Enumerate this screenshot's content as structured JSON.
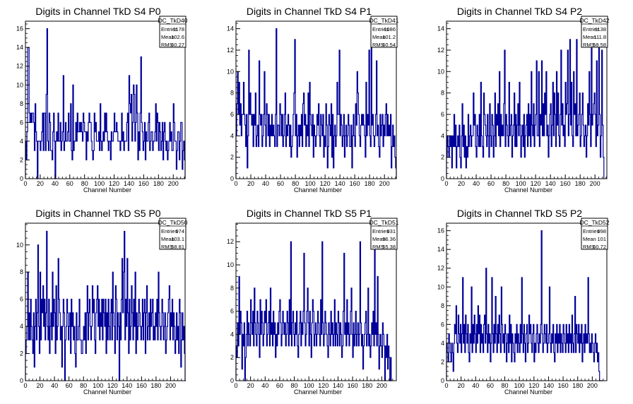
{
  "chart_data": [
    {
      "type": "histogram",
      "title": "Digits in Channel TkD S4 P0",
      "xlabel": "Channel Number",
      "xlim": [
        0,
        216
      ],
      "ylim": [
        0,
        16.8
      ],
      "xticks": [
        0,
        20,
        40,
        60,
        80,
        100,
        120,
        140,
        160,
        180,
        200
      ],
      "yticks": [
        0,
        2,
        4,
        6,
        8,
        10,
        12,
        14,
        16
      ],
      "stats": {
        "name": "DC_TkD40",
        "rows": [
          [
            "Entries",
            "1178"
          ],
          [
            "Mean",
            "102.6"
          ],
          [
            "RMS",
            "60.27"
          ]
        ]
      },
      "line_color": "#000099",
      "values": [
        4,
        2,
        5,
        14,
        14,
        7,
        6,
        7,
        6,
        7,
        7,
        6,
        3,
        8,
        5,
        4,
        0,
        4,
        4,
        4,
        3,
        4,
        5,
        7,
        3,
        7,
        7,
        3,
        9,
        16,
        4,
        3,
        7,
        6,
        3,
        3,
        2,
        5,
        7,
        4,
        0,
        4,
        5,
        4,
        7,
        4,
        4,
        6,
        3,
        4,
        5,
        11,
        3,
        4,
        6,
        4,
        4,
        5,
        7,
        4,
        4,
        8,
        3,
        2,
        10,
        3,
        4,
        4,
        6,
        4,
        7,
        5,
        5,
        6,
        5,
        6,
        5,
        4,
        7,
        6,
        5,
        5,
        2,
        5,
        4,
        6,
        7,
        6,
        6,
        4,
        3,
        2,
        3,
        7,
        5,
        6,
        4,
        4,
        4,
        5,
        3,
        8,
        4,
        3,
        4,
        5,
        4,
        7,
        5,
        7,
        5,
        4,
        3,
        4,
        4,
        2,
        5,
        4,
        4,
        5,
        7,
        5,
        5,
        6,
        5,
        4,
        4,
        4,
        3,
        4,
        7,
        4,
        5,
        3,
        4,
        4,
        4,
        6,
        7,
        3,
        11,
        8,
        7,
        9,
        4,
        6,
        10,
        9,
        4,
        6,
        10,
        7,
        2,
        5,
        3,
        7,
        13,
        6,
        5,
        3,
        4,
        6,
        2,
        5,
        4,
        4,
        6,
        7,
        3,
        4,
        5,
        5,
        3,
        4,
        4,
        5,
        8,
        4,
        7,
        6,
        3,
        6,
        5,
        3,
        4,
        6,
        2,
        5,
        6,
        4,
        3,
        4,
        2,
        3,
        4,
        6,
        4,
        5,
        3,
        3,
        8,
        6,
        4,
        4,
        1,
        3,
        5,
        5,
        2,
        4,
        6,
        6,
        1,
        3,
        4,
        2
      ]
    },
    {
      "type": "histogram",
      "title": "Digits in Channel TkD S4 P1",
      "xlabel": "Channel Number",
      "xlim": [
        0,
        216
      ],
      "ylim": [
        0,
        14.7
      ],
      "xticks": [
        0,
        20,
        40,
        60,
        80,
        100,
        120,
        140,
        160,
        180,
        200
      ],
      "yticks": [
        0,
        2,
        4,
        6,
        8,
        10,
        12,
        14
      ],
      "stats": {
        "name": "DC_TkD41",
        "rows": [
          [
            "Entries",
            "1086"
          ],
          [
            "Mean",
            "101.2"
          ],
          [
            "RMS",
            "60.54"
          ]
        ]
      },
      "line_color": "#000099",
      "values": [
        4,
        7,
        10,
        6,
        9,
        5,
        7,
        4,
        6,
        6,
        9,
        6,
        5,
        3,
        6,
        1,
        4,
        12,
        6,
        8,
        6,
        5,
        6,
        3,
        6,
        5,
        8,
        3,
        4,
        5,
        3,
        11,
        6,
        5,
        6,
        3,
        4,
        6,
        10,
        5,
        3,
        7,
        6,
        4,
        6,
        3,
        5,
        4,
        6,
        4,
        5,
        4,
        3,
        6,
        14,
        3,
        5,
        5,
        4,
        7,
        6,
        4,
        6,
        3,
        4,
        6,
        8,
        3,
        5,
        4,
        6,
        5,
        3,
        5,
        2,
        3,
        4,
        6,
        8,
        13,
        4,
        6,
        2,
        4,
        5,
        3,
        5,
        4,
        6,
        3,
        7,
        8,
        5,
        6,
        3,
        5,
        4,
        8,
        3,
        9,
        6,
        5,
        4,
        6,
        2,
        5,
        4,
        3,
        4,
        6,
        5,
        7,
        4,
        3,
        6,
        5,
        4,
        6,
        2,
        4,
        3,
        7,
        5,
        1,
        3,
        6,
        5,
        4,
        7,
        2,
        6,
        1,
        4,
        5,
        3,
        4,
        9,
        6,
        6,
        12,
        4,
        6,
        5,
        3,
        4,
        6,
        2,
        4,
        5,
        3,
        4,
        6,
        5,
        3,
        3,
        5,
        1,
        4,
        6,
        4,
        3,
        7,
        5,
        10,
        8,
        6,
        4,
        3,
        5,
        6,
        5,
        6,
        5,
        4,
        2,
        9,
        4,
        6,
        5,
        12,
        4,
        3,
        13,
        5,
        6,
        4,
        3,
        4,
        6,
        11,
        4,
        5,
        3,
        2,
        6,
        4,
        5,
        6,
        3,
        5,
        4,
        6,
        7,
        4,
        6,
        4,
        5,
        4,
        6,
        1,
        3,
        5,
        3,
        4,
        2,
        1
      ]
    },
    {
      "type": "histogram",
      "title": "Digits in Channel TkD S4 P2",
      "xlabel": "Channel Number",
      "xlim": [
        0,
        216
      ],
      "ylim": [
        0,
        14.7
      ],
      "xticks": [
        0,
        20,
        40,
        60,
        80,
        100,
        120,
        140,
        160,
        180,
        200
      ],
      "yticks": [
        0,
        2,
        4,
        6,
        8,
        10,
        12,
        14
      ],
      "stats": {
        "name": "DC_TkD42",
        "rows": [
          [
            "Entries",
            "1138"
          ],
          [
            "Mean",
            "111.8"
          ],
          [
            "RMS",
            "58.58"
          ]
        ]
      },
      "line_color": "#000099",
      "values": [
        2,
        4,
        3,
        2,
        4,
        3,
        4,
        1,
        4,
        3,
        6,
        3,
        5,
        1,
        3,
        4,
        3,
        5,
        2,
        1,
        4,
        7,
        3,
        5,
        2,
        4,
        1,
        3,
        2,
        6,
        3,
        4,
        5,
        3,
        4,
        4,
        8,
        5,
        6,
        3,
        2,
        5,
        4,
        3,
        6,
        3,
        9,
        4,
        3,
        2,
        8,
        6,
        5,
        4,
        3,
        6,
        4,
        2,
        7,
        4,
        3,
        6,
        5,
        2,
        4,
        8,
        3,
        6,
        5,
        7,
        4,
        10,
        3,
        6,
        4,
        5,
        4,
        7,
        12,
        3,
        6,
        5,
        4,
        3,
        9,
        4,
        5,
        6,
        2,
        4,
        5,
        8,
        3,
        6,
        3,
        5,
        7,
        4,
        9,
        5,
        2,
        4,
        5,
        3,
        6,
        2,
        4,
        5,
        6,
        3,
        7,
        4,
        6,
        3,
        10,
        5,
        4,
        7,
        3,
        5,
        6,
        11,
        4,
        4,
        10,
        3,
        6,
        5,
        11,
        4,
        7,
        4,
        8,
        6,
        10,
        4,
        5,
        2,
        4,
        6,
        7,
        3,
        5,
        9,
        4,
        8,
        6,
        3,
        10,
        5,
        8,
        4,
        3,
        6,
        12,
        5,
        7,
        4,
        5,
        3,
        9,
        6,
        7,
        12,
        4,
        6,
        13,
        5,
        9,
        4,
        3,
        10,
        6,
        7,
        4,
        13,
        4,
        5,
        6,
        8,
        3,
        4,
        6,
        8,
        5,
        3,
        4,
        5,
        2,
        4,
        7,
        5,
        10,
        6,
        3,
        13,
        5,
        6,
        7,
        8,
        6,
        3,
        11,
        4,
        5,
        14,
        6,
        2,
        4,
        12,
        5,
        2
      ]
    },
    {
      "type": "histogram",
      "title": "Digits in Channel TkD S5 P0",
      "xlabel": "Channel Number",
      "xlim": [
        0,
        220
      ],
      "ylim": [
        0,
        11.6
      ],
      "xticks": [
        0,
        20,
        40,
        60,
        80,
        100,
        120,
        140,
        160,
        180,
        200
      ],
      "yticks": [
        0,
        2,
        4,
        6,
        8,
        10
      ],
      "stats": {
        "name": "DC_TkD50",
        "rows": [
          [
            "Entries",
            "974"
          ],
          [
            "Mean",
            "103.1"
          ],
          [
            "RMS",
            "58.81"
          ]
        ]
      },
      "line_color": "#000099",
      "values": [
        2,
        3,
        4,
        8,
        3,
        5,
        3,
        6,
        4,
        3,
        2,
        5,
        1,
        4,
        6,
        3,
        5,
        10,
        4,
        2,
        8,
        3,
        6,
        5,
        7,
        4,
        6,
        3,
        5,
        11,
        4,
        3,
        6,
        2,
        4,
        5,
        3,
        8,
        4,
        6,
        5,
        2,
        7,
        3,
        4,
        9,
        6,
        5,
        3,
        4,
        1,
        4,
        6,
        5,
        0,
        3,
        4,
        6,
        5,
        3,
        4,
        5,
        2,
        6,
        4,
        5,
        3,
        4,
        2,
        1,
        5,
        3,
        3,
        4,
        6,
        3,
        3,
        2,
        2,
        3,
        4,
        3,
        5,
        2,
        5,
        7,
        3,
        5,
        6,
        4,
        3,
        4,
        7,
        5,
        6,
        3,
        2,
        5,
        6,
        7,
        4,
        6,
        3,
        5,
        4,
        6,
        3,
        6,
        5,
        4,
        6,
        2,
        5,
        3,
        6,
        4,
        3,
        5,
        6,
        3,
        8,
        5,
        4,
        2,
        7,
        6,
        3,
        5,
        4,
        0,
        5,
        3,
        6,
        9,
        5,
        8,
        11,
        3,
        6,
        4,
        9,
        5,
        2,
        6,
        3,
        4,
        7,
        5,
        3,
        6,
        4,
        8,
        2,
        5,
        3,
        4,
        6,
        5,
        4,
        3,
        4,
        6,
        3,
        5,
        6,
        2,
        5,
        7,
        3,
        4,
        5,
        3,
        6,
        4,
        5,
        6,
        3,
        4,
        3,
        5,
        4,
        6,
        3,
        8,
        5,
        4,
        3,
        4,
        6,
        5,
        3,
        4,
        5,
        2,
        3,
        4,
        5,
        6,
        7,
        3,
        5,
        4,
        6,
        3,
        5,
        4,
        2,
        3,
        5,
        3,
        4,
        2,
        6,
        5,
        1,
        3,
        5,
        3,
        4,
        2,
        0
      ]
    },
    {
      "type": "histogram",
      "title": "Digits in Channel TkD S5 P1",
      "xlabel": "Channel Number",
      "xlim": [
        0,
        220
      ],
      "ylim": [
        0,
        13.6
      ],
      "xticks": [
        0,
        20,
        40,
        60,
        80,
        100,
        120,
        140,
        160,
        180,
        200
      ],
      "yticks": [
        0,
        2,
        4,
        6,
        8,
        10,
        12
      ],
      "stats": {
        "name": "DC_TkD51",
        "rows": [
          [
            "Entries",
            "931"
          ],
          [
            "Mean",
            "96.36"
          ],
          [
            "RMS",
            "55.38"
          ]
        ]
      },
      "line_color": "#000099",
      "values": [
        3,
        2,
        5,
        3,
        9,
        4,
        6,
        5,
        1,
        4,
        3,
        5,
        0,
        2,
        4,
        6,
        3,
        5,
        4,
        3,
        7,
        5,
        4,
        6,
        3,
        8,
        5,
        4,
        3,
        6,
        5,
        4,
        2,
        7,
        4,
        6,
        5,
        3,
        4,
        6,
        5,
        7,
        3,
        4,
        5,
        6,
        3,
        8,
        4,
        5,
        3,
        6,
        4,
        5,
        2,
        4,
        3,
        5,
        4,
        6,
        7,
        5,
        3,
        4,
        6,
        5,
        4,
        5,
        3,
        4,
        6,
        5,
        3,
        7,
        4,
        12,
        3,
        5,
        6,
        4,
        3,
        5,
        4,
        6,
        3,
        2,
        4,
        5,
        6,
        3,
        5,
        4,
        6,
        11,
        5,
        3,
        4,
        6,
        8,
        5,
        3,
        6,
        4,
        2,
        5,
        7,
        6,
        3,
        4,
        5,
        3,
        4,
        6,
        5,
        4,
        3,
        7,
        4,
        12,
        5,
        3,
        4,
        6,
        5,
        4,
        3,
        2,
        5,
        4,
        3,
        6,
        4,
        5,
        3,
        4,
        7,
        3,
        5,
        4,
        3,
        6,
        5,
        3,
        5,
        4,
        2,
        3,
        6,
        11,
        4,
        5,
        3,
        7,
        4,
        5,
        3,
        4,
        6,
        8,
        4,
        2,
        5,
        3,
        4,
        6,
        3,
        4,
        5,
        3,
        4,
        12,
        5,
        3,
        4,
        1,
        3,
        4,
        5,
        6,
        3,
        4,
        8,
        3,
        4,
        2,
        3,
        5,
        4,
        6,
        3,
        12,
        4,
        5,
        3,
        9,
        4,
        1,
        3,
        4,
        3,
        2,
        5,
        4,
        3,
        0,
        3,
        2,
        4,
        1,
        3,
        2,
        0,
        2,
        0
      ]
    },
    {
      "type": "histogram",
      "title": "Digits in Channel TkD S5 P2",
      "xlabel": "Channel Number",
      "xlim": [
        0,
        220
      ],
      "ylim": [
        0,
        16.8
      ],
      "xticks": [
        0,
        20,
        40,
        60,
        80,
        100,
        120,
        140,
        160,
        180,
        200
      ],
      "yticks": [
        0,
        2,
        4,
        6,
        8,
        10,
        12,
        14,
        16
      ],
      "stats": {
        "name": "DC_TkD52",
        "rows": [
          [
            "Entries",
            "998"
          ],
          [
            "Mean",
            "101"
          ],
          [
            "RMS",
            "60.72"
          ]
        ]
      },
      "line_color": "#000099",
      "values": [
        4,
        3,
        2,
        5,
        4,
        3,
        2,
        4,
        3,
        1,
        4,
        6,
        5,
        8,
        4,
        3,
        7,
        5,
        4,
        6,
        3,
        5,
        11,
        4,
        6,
        3,
        7,
        5,
        4,
        6,
        3,
        2,
        5,
        4,
        10,
        3,
        6,
        4,
        7,
        5,
        3,
        6,
        4,
        8,
        5,
        7,
        3,
        6,
        4,
        5,
        3,
        6,
        7,
        4,
        12,
        5,
        3,
        6,
        4,
        5,
        2,
        4,
        11,
        5,
        3,
        6,
        4,
        9,
        5,
        3,
        6,
        4,
        7,
        5,
        3,
        10,
        6,
        4,
        5,
        3,
        6,
        5,
        2,
        4,
        5,
        3,
        7,
        4,
        6,
        2,
        5,
        4,
        3,
        2,
        5,
        4,
        6,
        3,
        5,
        4,
        3,
        6,
        4,
        11,
        5,
        3,
        6,
        4,
        2,
        5,
        6,
        3,
        4,
        7,
        5,
        6,
        4,
        3,
        5,
        6,
        2,
        4,
        3,
        5,
        6,
        4,
        3,
        5,
        4,
        6,
        16,
        5,
        3,
        4,
        6,
        5,
        4,
        6,
        3,
        4,
        5,
        10,
        4,
        3,
        5,
        4,
        6,
        3,
        2,
        5,
        4,
        6,
        3,
        5,
        4,
        6,
        3,
        5,
        4,
        3,
        6,
        5,
        4,
        3,
        6,
        4,
        5,
        3,
        6,
        4,
        5,
        3,
        7,
        4,
        3,
        5,
        9,
        3,
        6,
        5,
        4,
        6,
        3,
        5,
        4,
        6,
        2,
        4,
        5,
        3,
        6,
        4,
        5,
        4,
        11,
        5,
        3,
        4,
        3,
        5,
        4,
        3,
        2,
        4,
        5,
        3,
        4,
        2,
        3,
        1,
        0,
        0,
        0,
        0,
        0
      ]
    }
  ]
}
